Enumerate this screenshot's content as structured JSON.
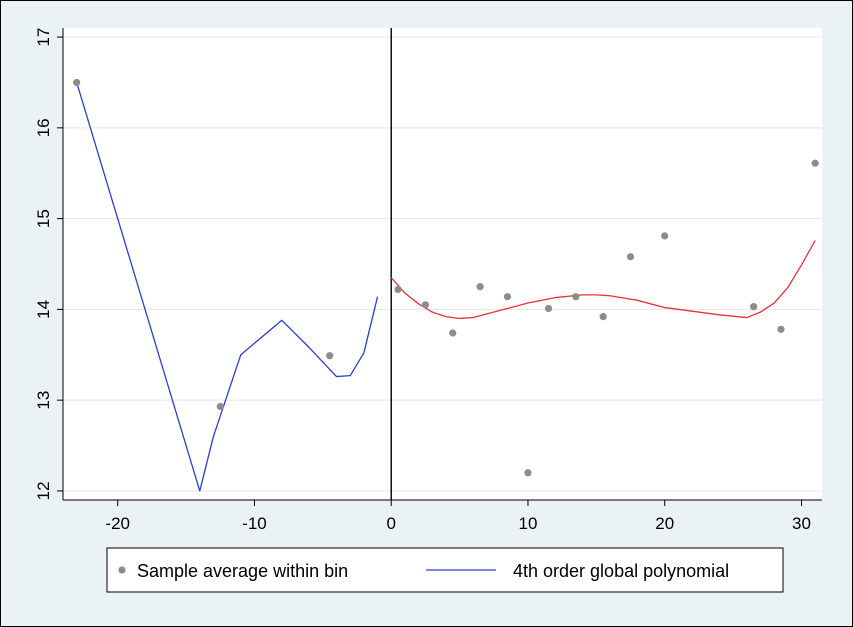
{
  "chart_data": {
    "type": "scatter",
    "title": "",
    "xlabel": "",
    "ylabel": "",
    "xlim": [
      -24,
      31.5
    ],
    "ylim": [
      11.9,
      17.1
    ],
    "xticks": [
      -20,
      -10,
      0,
      10,
      20,
      30
    ],
    "yticks": [
      12,
      13,
      14,
      15,
      16,
      17
    ],
    "xtick_labels": [
      "-20",
      "-10",
      "0",
      "10",
      "20",
      "30"
    ],
    "ytick_labels": [
      "12",
      "13",
      "14",
      "15",
      "16",
      "17"
    ],
    "cutoff_x": 0,
    "grid": true,
    "legend_position": "bottom",
    "series": [
      {
        "name": "Sample average within bin",
        "kind": "scatter",
        "color": "#8c8c8c",
        "points": [
          {
            "x": -23,
            "y": 16.5
          },
          {
            "x": -12.5,
            "y": 12.93
          },
          {
            "x": -4.5,
            "y": 13.49
          },
          {
            "x": 0.5,
            "y": 14.22
          },
          {
            "x": 2.5,
            "y": 14.05
          },
          {
            "x": 4.5,
            "y": 13.74
          },
          {
            "x": 6.5,
            "y": 14.25
          },
          {
            "x": 8.5,
            "y": 14.14
          },
          {
            "x": 10,
            "y": 12.2
          },
          {
            "x": 11.5,
            "y": 14.01
          },
          {
            "x": 13.5,
            "y": 14.14
          },
          {
            "x": 15.5,
            "y": 13.92
          },
          {
            "x": 17.5,
            "y": 14.58
          },
          {
            "x": 20,
            "y": 14.81
          },
          {
            "x": 26.5,
            "y": 14.03
          },
          {
            "x": 28.5,
            "y": 13.78
          },
          {
            "x": 31,
            "y": 15.61
          }
        ]
      },
      {
        "name": "4th order global polynomial",
        "kind": "line",
        "color": "#2b3fd1",
        "points": [
          {
            "x": -23,
            "y": 16.5
          },
          {
            "x": -14,
            "y": 12.0
          },
          {
            "x": -13,
            "y": 12.6
          },
          {
            "x": -11,
            "y": 13.5
          },
          {
            "x": -8,
            "y": 13.88
          },
          {
            "x": -6,
            "y": 13.58
          },
          {
            "x": -4,
            "y": 13.26
          },
          {
            "x": -3,
            "y": 13.27
          },
          {
            "x": -2,
            "y": 13.52
          },
          {
            "x": -1,
            "y": 14.14
          }
        ]
      },
      {
        "kind": "line",
        "color": "#e8323b",
        "points": [
          {
            "x": 0,
            "y": 14.35
          },
          {
            "x": 1,
            "y": 14.18
          },
          {
            "x": 2,
            "y": 14.06
          },
          {
            "x": 3,
            "y": 13.97
          },
          {
            "x": 4,
            "y": 13.92
          },
          {
            "x": 5,
            "y": 13.9
          },
          {
            "x": 6,
            "y": 13.91
          },
          {
            "x": 7,
            "y": 13.95
          },
          {
            "x": 8,
            "y": 13.99
          },
          {
            "x": 9,
            "y": 14.03
          },
          {
            "x": 10,
            "y": 14.07
          },
          {
            "x": 12,
            "y": 14.13
          },
          {
            "x": 14,
            "y": 14.16
          },
          {
            "x": 15,
            "y": 14.16
          },
          {
            "x": 16,
            "y": 14.15
          },
          {
            "x": 18,
            "y": 14.1
          },
          {
            "x": 20,
            "y": 14.02
          },
          {
            "x": 22,
            "y": 13.98
          },
          {
            "x": 24,
            "y": 13.94
          },
          {
            "x": 26,
            "y": 13.91
          },
          {
            "x": 27,
            "y": 13.97
          },
          {
            "x": 28,
            "y": 14.07
          },
          {
            "x": 29,
            "y": 14.24
          },
          {
            "x": 30,
            "y": 14.49
          },
          {
            "x": 31,
            "y": 14.76
          }
        ]
      }
    ]
  },
  "legend": {
    "items": [
      "Sample average within bin",
      "4th order global polynomial"
    ]
  }
}
